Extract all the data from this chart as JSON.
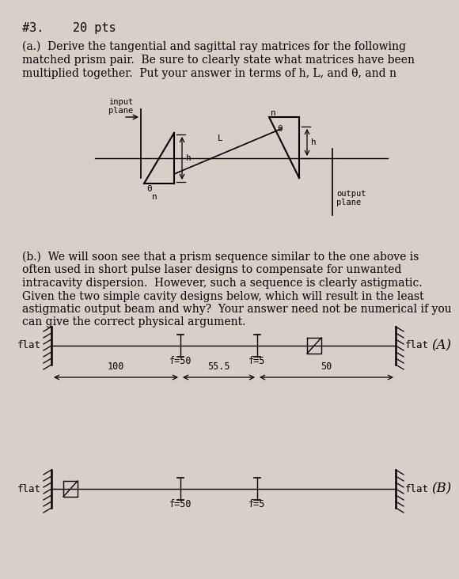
{
  "bg_color": "#d8d0c8",
  "title_line1": "#3.    20 pts",
  "part_a_text": "(a.)  Derive the tangential and sagittal ray matrices for the following\nmatched prism pair.  Be sure to clearly state what matrices have been\nmultiplied together.  Put your answer in terms of h, L, and θ, and n",
  "part_b_text": "(b.)  We will soon see that a prism sequence similar to the one above is\noften used in short pulse laser designs to compensate for unwanted\nintracavity dispersion.  However, such a sequence is clearly astigmatic.\nGiven the two simple cavity designs below, which will result in the least\nastigmatic output beam and why?  Your answer need not be numerical if you\ncan give the correct physical argument.",
  "diagram_A_label": "(A)",
  "diagram_B_label": "(B)",
  "flat_label": "flat",
  "f50_label": "f=50",
  "f5_label": "f=5",
  "dist_100": "100",
  "dist_555": "55.5",
  "dist_50": "50"
}
